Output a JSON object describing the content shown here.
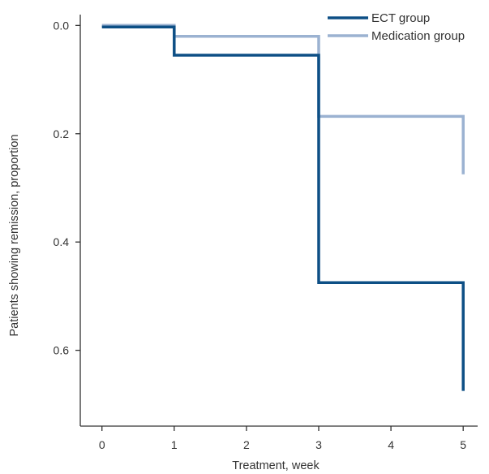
{
  "chart_data": {
    "type": "line",
    "step": true,
    "y_inverted": true,
    "xlabel": "Treatment, week",
    "ylabel": "Patients showing remission, proportion",
    "xlim": [
      -0.3,
      5.2
    ],
    "ylim": [
      -0.02,
      0.74
    ],
    "x_ticks": [
      0,
      1,
      2,
      3,
      4,
      5
    ],
    "y_ticks": [
      0.0,
      0.2,
      0.4,
      0.6
    ],
    "x_tick_labels": [
      "0",
      "1",
      "2",
      "3",
      "4",
      "5"
    ],
    "y_tick_labels": [
      "0.0",
      "0.2",
      "0.4",
      "0.6"
    ],
    "grid": false,
    "legend_position": "top-right",
    "series": [
      {
        "name": "ECT group",
        "color": "#0d4f85",
        "x": [
          0,
          1,
          3,
          5
        ],
        "y": [
          0.003,
          0.055,
          0.475,
          0.675
        ]
      },
      {
        "name": "Medication group",
        "color": "#9bb2d1",
        "x": [
          0,
          1,
          3,
          5
        ],
        "y": [
          0.0,
          0.02,
          0.168,
          0.275
        ]
      }
    ]
  }
}
